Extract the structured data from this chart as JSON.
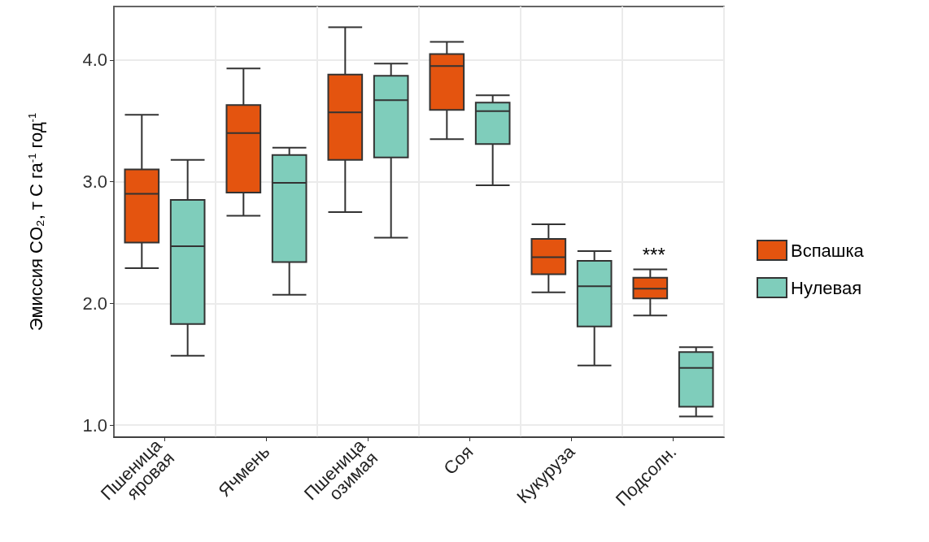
{
  "chart_data": {
    "type": "box",
    "ylabel": "Эмиссия CO₂, т С га$^{-1}$ год$^{-1}$",
    "categories": [
      "Пшеница яровая",
      "Ячмень",
      "Пшеница озимая",
      "Соя",
      "Кукуруза",
      "Подсолн."
    ],
    "series": [
      {
        "name": "Вспашка",
        "color": "#e4540f",
        "boxes": [
          {
            "low": 2.29,
            "q1": 2.5,
            "median": 2.9,
            "q3": 3.1,
            "high": 3.55
          },
          {
            "low": 2.72,
            "q1": 2.91,
            "median": 3.4,
            "q3": 3.63,
            "high": 3.93
          },
          {
            "low": 2.75,
            "q1": 3.18,
            "median": 3.57,
            "q3": 3.88,
            "high": 4.27
          },
          {
            "low": 3.35,
            "q1": 3.59,
            "median": 3.95,
            "q3": 4.05,
            "high": 4.15
          },
          {
            "low": 2.09,
            "q1": 2.24,
            "median": 2.38,
            "q3": 2.53,
            "high": 2.65
          },
          {
            "low": 1.9,
            "q1": 2.04,
            "median": 2.12,
            "q3": 2.21,
            "high": 2.28
          }
        ]
      },
      {
        "name": "Нулевая",
        "color": "#7fcdbb",
        "boxes": [
          {
            "low": 1.57,
            "q1": 1.83,
            "median": 2.47,
            "q3": 2.85,
            "high": 3.18
          },
          {
            "low": 2.07,
            "q1": 2.34,
            "median": 2.99,
            "q3": 3.22,
            "high": 3.28
          },
          {
            "low": 2.54,
            "q1": 3.2,
            "median": 3.67,
            "q3": 3.87,
            "high": 3.97
          },
          {
            "low": 2.97,
            "q1": 3.31,
            "median": 3.58,
            "q3": 3.65,
            "high": 3.71
          },
          {
            "low": 1.49,
            "q1": 1.81,
            "median": 2.14,
            "q3": 2.35,
            "high": 2.43
          },
          {
            "low": 1.07,
            "q1": 1.15,
            "median": 1.47,
            "q3": 1.6,
            "high": 1.64
          }
        ]
      }
    ],
    "annotations": [
      "***"
    ],
    "ylim": [
      0.9,
      4.44
    ],
    "yticks": [
      {
        "value": 1,
        "label": "1.0"
      },
      {
        "value": 2,
        "label": "2.0"
      },
      {
        "value": 3,
        "label": "3.0"
      },
      {
        "value": 4,
        "label": "4.0"
      }
    ],
    "grid": true,
    "legend": "right"
  }
}
